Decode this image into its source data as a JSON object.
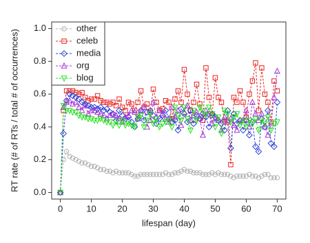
{
  "chart_data": {
    "type": "line",
    "xlabel": "lifespan (day)",
    "ylabel": "RT rate (# of RTs / total # of occurrences)",
    "xlim": [
      -2.8,
      72.8
    ],
    "ylim": [
      -0.04,
      1.04
    ],
    "xticks": [
      0,
      10,
      20,
      30,
      40,
      50,
      60,
      70
    ],
    "yticks": [
      {
        "value": 0,
        "label": "0.0"
      },
      0.2,
      0.4,
      0.6,
      0.8,
      {
        "value": 1,
        "label": "1.0"
      }
    ],
    "legend": "top-left",
    "x": [
      0,
      1,
      2,
      3,
      4,
      5,
      6,
      7,
      8,
      9,
      10,
      11,
      12,
      13,
      14,
      15,
      16,
      17,
      18,
      19,
      20,
      21,
      22,
      23,
      24,
      25,
      26,
      27,
      28,
      29,
      30,
      31,
      32,
      33,
      34,
      35,
      36,
      37,
      38,
      39,
      40,
      41,
      42,
      43,
      44,
      45,
      46,
      47,
      48,
      49,
      50,
      51,
      52,
      53,
      54,
      55,
      56,
      57,
      58,
      59,
      60,
      61,
      62,
      63,
      64,
      65,
      66,
      67,
      68,
      69,
      70
    ],
    "series": [
      {
        "name": "other",
        "color": "#b0b0b0",
        "marker": "circle",
        "values": [
          0,
          0.2,
          0.25,
          0.22,
          0.21,
          0.2,
          0.19,
          0.18,
          0.18,
          0.17,
          0.16,
          0.16,
          0.15,
          0.14,
          0.14,
          0.13,
          0.13,
          0.12,
          0.13,
          0.12,
          0.12,
          0.12,
          0.12,
          0.11,
          0.1,
          0.1,
          0.11,
          0.11,
          0.11,
          0.11,
          0.11,
          0.11,
          0.11,
          0.11,
          0.12,
          0.11,
          0.11,
          0.12,
          0.12,
          0.13,
          0.14,
          0.13,
          0.13,
          0.12,
          0.12,
          0.12,
          0.11,
          0.11,
          0.11,
          0.12,
          0.11,
          0.12,
          0.11,
          0.11,
          0.11,
          0.1,
          0.09,
          0.1,
          0.1,
          0.1,
          0.1,
          0.11,
          0.1,
          0.1,
          0.09,
          0.1,
          0.11,
          0.11,
          0.09,
          0.09,
          0.09
        ]
      },
      {
        "name": "celeb",
        "color": "#e8201c",
        "marker": "square",
        "values": [
          0,
          0.5,
          0.62,
          0.62,
          0.62,
          0.61,
          0.6,
          0.61,
          0.58,
          0.56,
          0.57,
          0.57,
          0.59,
          0.56,
          0.55,
          0.55,
          0.54,
          0.55,
          0.53,
          0.57,
          0.52,
          0.5,
          0.55,
          0.54,
          0.5,
          0.55,
          0.62,
          0.52,
          0.54,
          0.49,
          0.63,
          0.55,
          0.5,
          0.51,
          0.56,
          0.55,
          0.45,
          0.57,
          0.62,
          0.55,
          0.75,
          0.6,
          0.5,
          0.55,
          0.66,
          0.54,
          0.44,
          0.76,
          0.58,
          0.47,
          0.7,
          0.58,
          0.55,
          0.43,
          0.43,
          0.17,
          0.58,
          0.55,
          0.62,
          0.55,
          0.46,
          0.6,
          0.68,
          0.79,
          0.5,
          0.76,
          0.6,
          0.55,
          0.43,
          0.68,
          0.62
        ]
      },
      {
        "name": "media",
        "color": "#2a3fd6",
        "marker": "diamond",
        "values": [
          0,
          0.36,
          0.56,
          0.6,
          0.59,
          0.58,
          0.57,
          0.55,
          0.54,
          0.53,
          0.52,
          0.52,
          0.51,
          0.52,
          0.5,
          0.51,
          0.49,
          0.48,
          0.44,
          0.5,
          0.47,
          0.45,
          0.46,
          0.43,
          0.4,
          0.45,
          0.5,
          0.44,
          0.49,
          0.5,
          0.47,
          0.42,
          0.45,
          0.47,
          0.5,
          0.45,
          0.43,
          0.44,
          0.38,
          0.51,
          0.48,
          0.43,
          0.5,
          0.42,
          0.47,
          0.45,
          0.48,
          0.46,
          0.4,
          0.48,
          0.46,
          0.44,
          0.42,
          0.38,
          0.5,
          0.27,
          0.48,
          0.42,
          0.44,
          0.38,
          0.44,
          0.35,
          0.43,
          0.28,
          0.25,
          0.45,
          0.4,
          0.5,
          0.3,
          0.28,
          0.55
        ]
      },
      {
        "name": "org",
        "color": "#a033d6",
        "marker": "triangle",
        "values": [
          0,
          0.52,
          0.55,
          0.56,
          0.54,
          0.55,
          0.52,
          0.5,
          0.53,
          0.48,
          0.5,
          0.5,
          0.49,
          0.48,
          0.47,
          0.45,
          0.47,
          0.48,
          0.47,
          0.45,
          0.43,
          0.46,
          0.47,
          0.5,
          0.49,
          0.45,
          0.5,
          0.52,
          0.4,
          0.44,
          0.55,
          0.46,
          0.5,
          0.48,
          0.45,
          0.43,
          0.52,
          0.46,
          0.5,
          0.41,
          0.49,
          0.53,
          0.44,
          0.47,
          0.49,
          0.45,
          0.35,
          0.5,
          0.48,
          0.42,
          0.45,
          0.44,
          0.38,
          0.46,
          0.44,
          0.45,
          0.41,
          0.38,
          0.44,
          0.44,
          0.5,
          0.4,
          0.55,
          0.48,
          0.44,
          0.48,
          0.4,
          0.35,
          0.42,
          0.58,
          0.74
        ]
      },
      {
        "name": "blog",
        "color": "#22e01a",
        "marker": "down-triangle",
        "values": [
          0,
          0.53,
          0.5,
          0.5,
          0.49,
          0.49,
          0.47,
          0.46,
          0.46,
          0.45,
          0.45,
          0.44,
          0.44,
          0.45,
          0.44,
          0.43,
          0.43,
          0.41,
          0.43,
          0.41,
          0.44,
          0.41,
          0.42,
          0.41,
          0.4,
          0.46,
          0.47,
          0.4,
          0.44,
          0.48,
          0.42,
          0.45,
          0.4,
          0.42,
          0.43,
          0.44,
          0.4,
          0.52,
          0.47,
          0.44,
          0.52,
          0.45,
          0.38,
          0.5,
          0.44,
          0.52,
          0.5,
          0.47,
          0.52,
          0.48,
          0.4,
          0.46,
          0.36,
          0.5,
          0.48,
          0.43,
          0.46,
          0.48,
          0.41,
          0.44,
          0.4,
          0.44,
          0.42,
          0.45,
          0.38,
          0.44,
          0.42,
          0.46,
          0.38,
          0.42,
          0.43
        ]
      }
    ]
  }
}
